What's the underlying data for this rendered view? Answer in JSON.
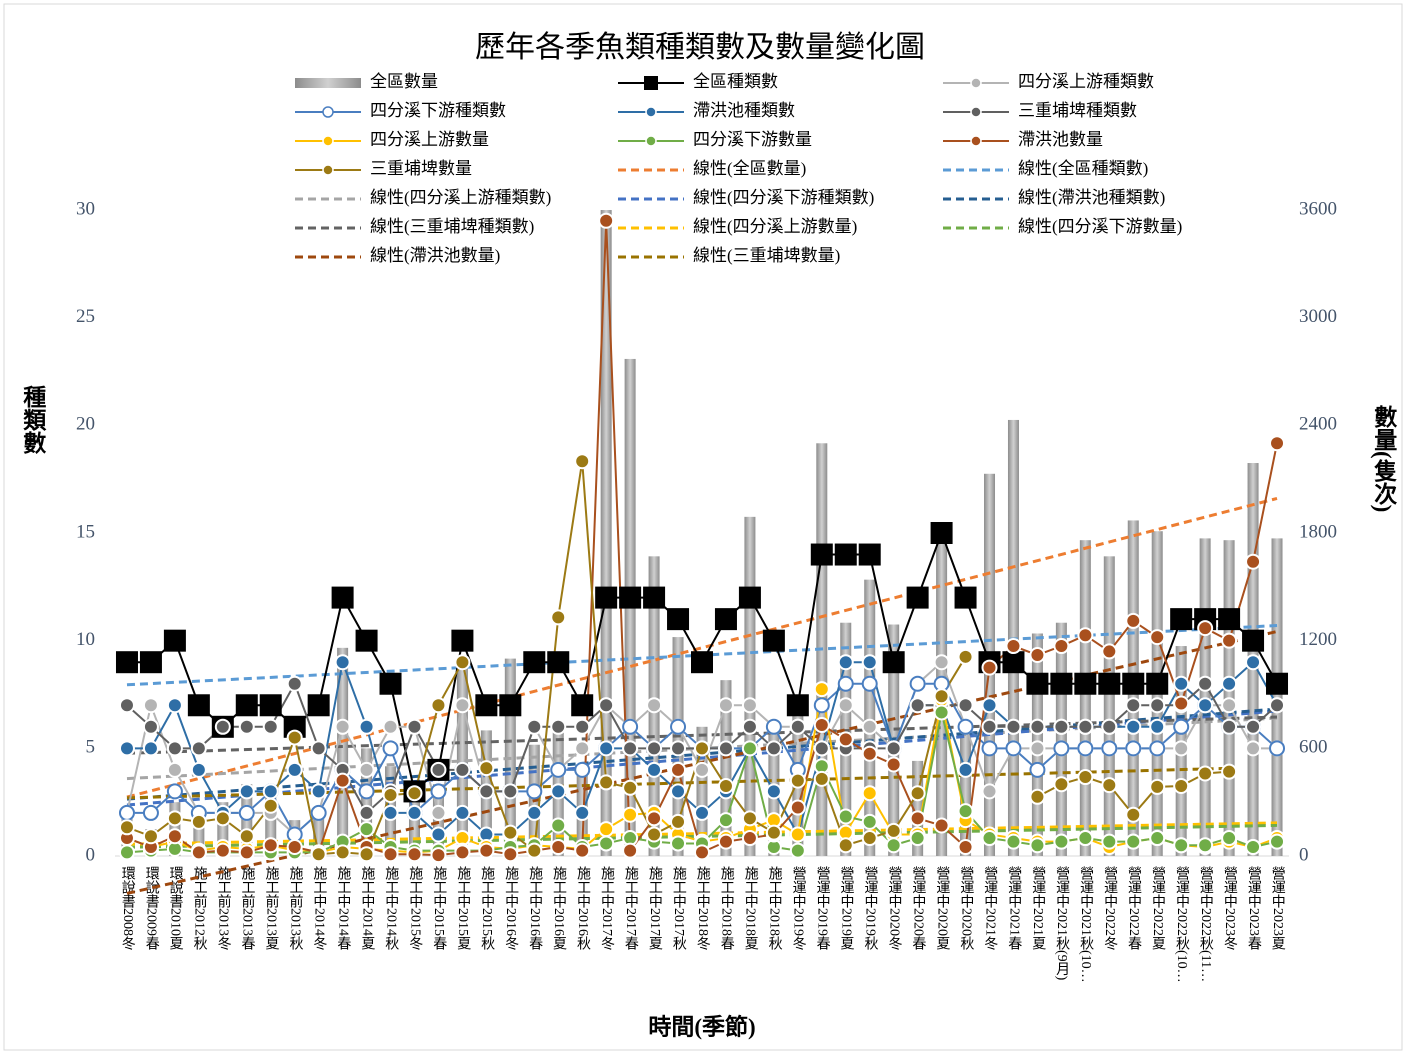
{
  "chart_data": {
    "type": "combo",
    "title": "歷年各季魚類種類數及數量變化圖",
    "y_label": "種類數",
    "y2_label": "數量(隻次)",
    "x_label": "時間(季節)",
    "categories": [
      "環說書2008冬",
      "環說書2009春",
      "環說書2010夏",
      "施工前2012秋",
      "施工前2013冬",
      "施工前2013春",
      "施工前2013夏",
      "施工前2013秋",
      "施工中2014冬",
      "施工中2014春",
      "施工中2014夏",
      "施工中2014秋",
      "施工中2015冬",
      "施工中2015春",
      "施工中2015夏",
      "施工中2015秋",
      "施工中2016冬",
      "施工中2016春",
      "施工中2016夏",
      "施工中2016秋",
      "施工中2017冬",
      "施工中2017春",
      "施工中2017夏",
      "施工中2017秋",
      "施工中2018冬",
      "施工中2018春",
      "施工中2018夏",
      "施工中2018秋",
      "營運中2019冬",
      "營運中2019春",
      "營運中2019夏",
      "營運中2019秋",
      "營運中2020冬",
      "營運中2020春",
      "營運中2020夏",
      "營運中2020秋",
      "營運中2021冬",
      "營運中2021春",
      "營運中2021夏",
      "營運中2021秋(9月)",
      "營運中2021秋(10…",
      "營運中2022冬",
      "營運中2022春",
      "營運中2022夏",
      "營運中2022秋(10…",
      "營運中2022秋(11…",
      "營運中2023冬",
      "營運中2023春",
      "營運中2023夏"
    ],
    "ylim": [
      0,
      30
    ],
    "yticks": [
      0,
      5,
      10,
      15,
      20,
      25,
      30
    ],
    "y2lim": [
      0,
      3600
    ],
    "y2ticks": [
      0,
      600,
      1200,
      1800,
      2400,
      3000,
      3600
    ],
    "grid": false,
    "series": [
      {
        "name": "全區數量",
        "type": "bar",
        "axis": "y2",
        "color": "#a6a6a6",
        "values": [
          250,
          150,
          300,
          200,
          300,
          400,
          350,
          200,
          250,
          1160,
          600,
          500,
          300,
          400,
          1100,
          700,
          1100,
          620,
          700,
          500,
          3600,
          2770,
          1670,
          1220,
          720,
          980,
          1890,
          700,
          900,
          2300,
          1300,
          1540,
          1290,
          530,
          1800,
          700,
          2130,
          2430,
          1240,
          1300,
          1760,
          1670,
          1870,
          1810,
          1170,
          1770,
          1760,
          2190,
          1770
        ],
        "trendline": {
          "name": "線性(全區數量)",
          "color": "#ed7d31"
        }
      },
      {
        "name": "全區種類數",
        "type": "line",
        "marker": "square",
        "color": "#000000",
        "values": [
          9,
          9,
          10,
          7,
          6,
          7,
          7,
          6,
          7,
          12,
          10,
          8,
          3,
          4,
          10,
          7,
          7,
          9,
          9,
          7,
          12,
          12,
          12,
          11,
          9,
          11,
          12,
          10,
          7,
          14,
          14,
          14,
          9,
          12,
          15,
          12,
          9,
          9,
          8,
          8,
          8,
          8,
          8,
          8,
          11,
          11,
          11,
          10,
          8
        ],
        "trendline": {
          "name": "線性(全區種類數)",
          "color": "#5b9bd5"
        }
      },
      {
        "name": "四分溪上游種類數",
        "type": "line",
        "marker": "circle",
        "color": "#b4b4b4",
        "values": [
          2,
          7,
          4,
          2,
          2,
          2,
          2,
          1,
          2,
          6,
          4,
          6,
          6,
          2,
          7,
          3,
          3,
          6,
          4,
          5,
          7,
          6,
          7,
          6,
          4,
          7,
          7,
          6,
          6,
          5,
          7,
          6,
          5,
          8,
          9,
          6,
          3,
          5,
          5,
          5,
          5,
          5,
          5,
          5,
          5,
          7,
          7,
          5,
          5
        ],
        "trendline": {
          "name": "線性(四分溪上游種類數)",
          "color": "#a5a5a5"
        }
      },
      {
        "name": "四分溪下游種類數",
        "type": "line",
        "marker": "circle",
        "marker_fill": "#ffffff",
        "color": "#4a7ec0",
        "values": [
          2,
          2,
          3,
          2,
          2,
          2,
          3,
          1,
          2,
          4,
          3,
          5,
          2,
          3,
          4,
          3,
          3,
          3,
          4,
          4,
          5,
          6,
          5,
          6,
          5,
          5,
          5,
          6,
          4,
          7,
          8,
          8,
          5,
          8,
          8,
          6,
          5,
          5,
          4,
          5,
          5,
          5,
          5,
          5,
          6,
          7,
          6,
          6,
          5
        ],
        "trendline": {
          "name": "線性(四分溪下游種類數)",
          "color": "#4472c4"
        }
      },
      {
        "name": "滯洪池種類數",
        "type": "line",
        "marker": "circle",
        "color": "#2e6ea6",
        "values": [
          5,
          5,
          7,
          4,
          2,
          3,
          3,
          4,
          3,
          9,
          6,
          2,
          2,
          1,
          2,
          1,
          1,
          2,
          3,
          2,
          5,
          5,
          4,
          3,
          2,
          3,
          5,
          3,
          1,
          5,
          9,
          9,
          5,
          7,
          7,
          4,
          7,
          6,
          6,
          6,
          6,
          6,
          6,
          6,
          8,
          7,
          8,
          9,
          7
        ],
        "trendline": {
          "name": "線性(滯洪池種類數)",
          "color": "#255e91"
        }
      },
      {
        "name": "三重埔埤種類數",
        "type": "line",
        "marker": "circle",
        "color": "#606060",
        "values": [
          7,
          6,
          5,
          5,
          6,
          6,
          6,
          8,
          5,
          4,
          2,
          3,
          6,
          4,
          4,
          3,
          3,
          6,
          6,
          6,
          7,
          5,
          5,
          5,
          5,
          5,
          6,
          5,
          6,
          5,
          5,
          5,
          5,
          7,
          7,
          7,
          6,
          6,
          6,
          6,
          6,
          6,
          7,
          7,
          7,
          8,
          6,
          6,
          7
        ],
        "trendline": {
          "name": "線性(三重埔埤種類數)",
          "color": "#636363"
        }
      },
      {
        "name": "四分溪上游數量",
        "type": "line",
        "axis": "y2",
        "marker": "circle",
        "color": "#ffc000",
        "values": [
          100,
          50,
          80,
          30,
          50,
          40,
          60,
          30,
          20,
          50,
          40,
          30,
          20,
          30,
          100,
          50,
          40,
          60,
          50,
          40,
          150,
          230,
          240,
          120,
          80,
          100,
          150,
          200,
          120,
          930,
          130,
          350,
          120,
          120,
          870,
          200,
          120,
          100,
          80,
          80,
          100,
          50,
          80,
          100,
          60,
          50,
          80,
          50,
          100
        ],
        "trendline": {
          "name": "線性(四分溪上游數量)",
          "color": "#ffc000"
        }
      },
      {
        "name": "四分溪下游數量",
        "type": "line",
        "axis": "y2",
        "marker": "circle",
        "color": "#70ad47",
        "values": [
          20,
          30,
          40,
          20,
          20,
          20,
          20,
          20,
          20,
          80,
          150,
          50,
          30,
          30,
          30,
          30,
          50,
          60,
          170,
          50,
          70,
          100,
          80,
          70,
          70,
          200,
          600,
          50,
          30,
          500,
          220,
          190,
          60,
          100,
          800,
          250,
          100,
          80,
          60,
          80,
          100,
          80,
          80,
          100,
          60,
          60,
          100,
          50,
          80
        ],
        "trendline": {
          "name": "線性(四分溪下游數量)",
          "color": "#70ad47"
        }
      },
      {
        "name": "滯洪池數量",
        "type": "line",
        "axis": "y2",
        "marker": "circle",
        "color": "#a9501e",
        "values": [
          100,
          50,
          110,
          20,
          30,
          20,
          60,
          50,
          20,
          420,
          50,
          10,
          10,
          5,
          20,
          30,
          10,
          30,
          50,
          30,
          3540,
          30,
          210,
          480,
          20,
          80,
          100,
          120,
          270,
          730,
          650,
          570,
          510,
          210,
          170,
          50,
          1050,
          1170,
          1120,
          1170,
          1230,
          1140,
          1310,
          1220,
          850,
          1270,
          1200,
          1640,
          2300
        ],
        "trendline": {
          "name": "線性(滯洪池數量)",
          "color": "#9e480e"
        }
      },
      {
        "name": "三重埔埤數量",
        "type": "line",
        "axis": "y2",
        "marker": "circle",
        "color": "#9c7a14",
        "values": [
          160,
          110,
          210,
          190,
          210,
          110,
          280,
          660,
          10,
          20,
          10,
          340,
          350,
          840,
          1080,
          490,
          130,
          30,
          1330,
          2200,
          410,
          380,
          120,
          190,
          600,
          390,
          210,
          130,
          420,
          430,
          60,
          100,
          140,
          350,
          890,
          1110,
          null,
          null,
          330,
          400,
          440,
          395,
          230,
          385,
          390,
          460,
          470,
          null,
          null
        ],
        "trendline": {
          "name": "線性(三重埔埤數量)",
          "color": "#997300"
        }
      }
    ]
  }
}
